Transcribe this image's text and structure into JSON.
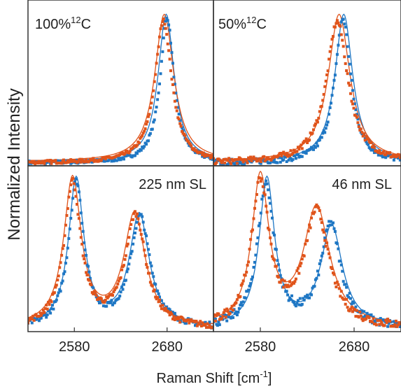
{
  "figure": {
    "ylabel": "Normalized Intensity",
    "xlabel_main": "Raman Shift [cm",
    "xlabel_sup": "-1",
    "xlabel_tail": "]"
  },
  "colors": {
    "blue": "#1f77c4",
    "orange": "#e0541b",
    "axis": "#333333"
  },
  "chart_data": [
    {
      "type": "line",
      "panel": "top-left",
      "label_main": "100%",
      "label_sup": "12",
      "label_tail": "C",
      "xlim": [
        2530,
        2730
      ],
      "ylim": [
        0,
        1.05
      ],
      "x_ticks": [],
      "series": [
        {
          "kind": "fit",
          "color": "blue",
          "peaks": [
            [
              2679,
              1.0,
              10.5
            ]
          ],
          "floor": 0.01
        },
        {
          "kind": "fit",
          "color": "orange",
          "peaks": [
            [
              2677,
              1.0,
              12.5
            ]
          ],
          "floor": 0.01
        },
        {
          "kind": "data",
          "color": "blue",
          "peaks": [
            [
              2680,
              0.985,
              9.0
            ]
          ],
          "floor": 0.0,
          "noise": 0.012
        },
        {
          "kind": "data",
          "color": "orange",
          "peaks": [
            [
              2676,
              0.97,
              11.0
            ]
          ],
          "floor": 0.0,
          "noise": 0.012
        }
      ]
    },
    {
      "type": "line",
      "panel": "top-right",
      "label_main": "50%",
      "label_sup": "12",
      "label_tail": "C",
      "xlim": [
        2530,
        2730
      ],
      "ylim": [
        0,
        1.05
      ],
      "x_ticks": [],
      "series": [
        {
          "kind": "fit",
          "color": "blue",
          "peaks": [
            [
              2669,
              1.0,
              11.5
            ]
          ],
          "floor": 0.01
        },
        {
          "kind": "fit",
          "color": "orange",
          "peaks": [
            [
              2664,
              1.0,
              14.0
            ]
          ],
          "floor": 0.01
        },
        {
          "kind": "data",
          "color": "blue",
          "peaks": [
            [
              2668,
              0.98,
              10.5
            ]
          ],
          "floor": 0.0,
          "noise": 0.02
        },
        {
          "kind": "data",
          "color": "orange",
          "peaks": [
            [
              2662,
              0.96,
              14.0
            ]
          ],
          "floor": 0.0,
          "noise": 0.02
        }
      ]
    },
    {
      "type": "line",
      "panel": "bottom-left",
      "label_main": "225 nm SL",
      "label_sup": "",
      "label_tail": "",
      "xlim": [
        2530,
        2730
      ],
      "ylim": [
        0,
        1.05
      ],
      "x_ticks": [
        2580,
        2680
      ],
      "series": [
        {
          "kind": "fit",
          "color": "blue",
          "peaks": [
            [
              2582,
              1.0,
              10.0
            ],
            [
              2650,
              0.76,
              13.0
            ]
          ],
          "floor": 0.01
        },
        {
          "kind": "fit",
          "color": "orange",
          "peaks": [
            [
              2578,
              1.0,
              11.5
            ],
            [
              2645,
              0.76,
              14.0
            ]
          ],
          "floor": 0.01
        },
        {
          "kind": "data",
          "color": "blue",
          "peaks": [
            [
              2582,
              0.98,
              10.0
            ],
            [
              2651,
              0.75,
              13.0
            ]
          ],
          "floor": 0.0,
          "noise": 0.02
        },
        {
          "kind": "data",
          "color": "orange",
          "peaks": [
            [
              2578,
              0.98,
              11.0
            ],
            [
              2646,
              0.76,
              13.5
            ]
          ],
          "floor": 0.0,
          "noise": 0.02
        }
      ]
    },
    {
      "type": "line",
      "panel": "bottom-right",
      "label_main": "46 nm SL",
      "label_sup": "",
      "label_tail": "",
      "xlim": [
        2530,
        2730
      ],
      "ylim": [
        0,
        1.05
      ],
      "x_ticks": [
        2580,
        2680
      ],
      "series": [
        {
          "kind": "fit",
          "color": "blue",
          "peaks": [
            [
              2587,
              1.0,
              10.0
            ],
            [
              2656,
              0.68,
              14.0
            ]
          ],
          "floor": 0.01
        },
        {
          "kind": "fit",
          "color": "orange",
          "peaks": [
            [
              2580,
              1.0,
              11.0
            ],
            [
              2640,
              0.8,
              17.0
            ]
          ],
          "floor": 0.01
        },
        {
          "kind": "data",
          "color": "blue",
          "peaks": [
            [
              2586,
              0.97,
              11.0
            ],
            [
              2655,
              0.7,
              13.0
            ]
          ],
          "floor": 0.0,
          "noise": 0.03
        },
        {
          "kind": "data",
          "color": "orange",
          "peaks": [
            [
              2580,
              0.98,
              11.5
            ],
            [
              2640,
              0.78,
              16.0
            ]
          ],
          "floor": 0.0,
          "noise": 0.03
        }
      ]
    }
  ]
}
